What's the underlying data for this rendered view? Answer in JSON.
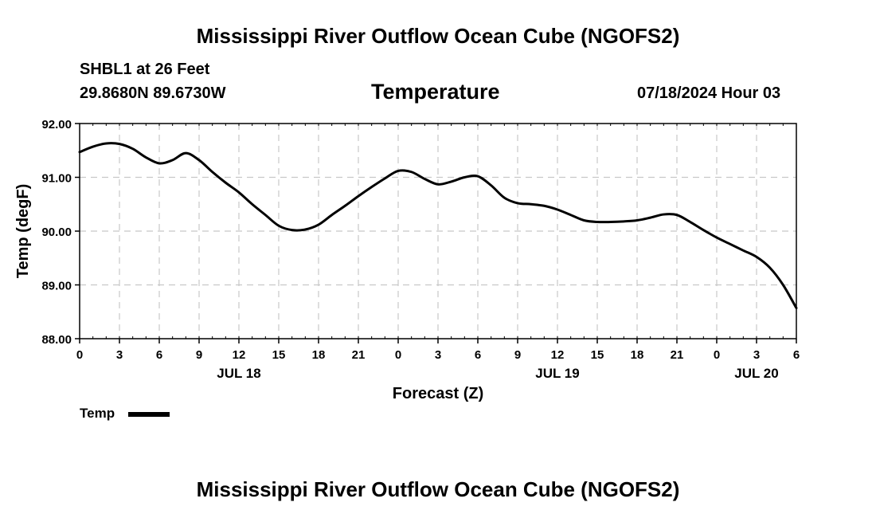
{
  "header": {
    "title": "Mississippi River Outflow Ocean Cube (NGOFS2)",
    "station": "SHBL1 at 26 Feet",
    "coords": "29.8680N  89.6730W",
    "parameter": "Temperature",
    "datetime": "07/18/2024 Hour 03"
  },
  "footer": {
    "title": "Mississippi River Outflow Ocean Cube (NGOFS2)"
  },
  "legend": {
    "label": "Temp",
    "color": "#000000"
  },
  "chart_data": {
    "type": "line",
    "title": "Temperature",
    "xlabel": "Forecast (Z)",
    "ylabel": "Temp (degF)",
    "ylim": [
      88.0,
      92.0
    ],
    "xlim": [
      0,
      54
    ],
    "x_unit": "hours since 07/18 00Z",
    "y_ticks": [
      "88.00",
      "89.00",
      "90.00",
      "91.00",
      "92.00"
    ],
    "y_tick_values": [
      88,
      89,
      90,
      91,
      92
    ],
    "x_ticks": [
      "0",
      "3",
      "6",
      "9",
      "12",
      "15",
      "18",
      "21",
      "0",
      "3",
      "6",
      "9",
      "12",
      "15",
      "18",
      "21",
      "0",
      "3",
      "6"
    ],
    "day_labels": [
      {
        "label": "JUL 18",
        "hour": 12
      },
      {
        "label": "JUL 19",
        "hour": 36
      },
      {
        "label": "JUL 20",
        "hour": 51
      }
    ],
    "grid": true,
    "series": [
      {
        "name": "Temp",
        "color": "#000000",
        "x": [
          0,
          1,
          2,
          3,
          4,
          5,
          6,
          7,
          8,
          9,
          10,
          11,
          12,
          13,
          14,
          15,
          16,
          17,
          18,
          19,
          20,
          21,
          22,
          23,
          24,
          25,
          26,
          27,
          28,
          29,
          30,
          31,
          32,
          33,
          34,
          35,
          36,
          37,
          38,
          39,
          40,
          41,
          42,
          43,
          44,
          45,
          46,
          47,
          48,
          49,
          50,
          51,
          52,
          53,
          54
        ],
        "values": [
          91.47,
          91.57,
          91.63,
          91.62,
          91.53,
          91.37,
          91.26,
          91.32,
          91.45,
          91.32,
          91.1,
          90.9,
          90.72,
          90.5,
          90.3,
          90.1,
          90.02,
          90.03,
          90.12,
          90.3,
          90.47,
          90.65,
          90.82,
          90.98,
          91.12,
          91.1,
          90.97,
          90.87,
          90.92,
          91.0,
          91.02,
          90.85,
          90.62,
          90.52,
          90.5,
          90.47,
          90.4,
          90.3,
          90.2,
          90.17,
          90.17,
          90.18,
          90.2,
          90.25,
          90.31,
          90.3,
          90.17,
          90.02,
          89.88,
          89.76,
          89.64,
          89.52,
          89.32,
          89.0,
          88.57
        ]
      }
    ]
  }
}
